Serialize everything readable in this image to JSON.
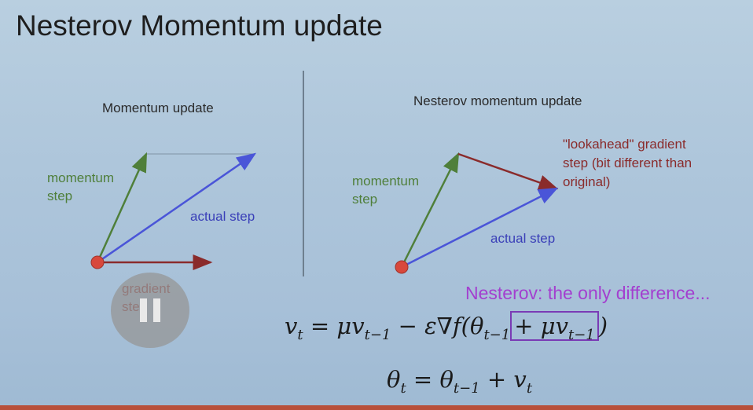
{
  "slide": {
    "title": "Nesterov Momentum update",
    "left_diagram": {
      "heading": "Momentum update",
      "momentum_label_line1": "momentum",
      "momentum_label_line2": "step",
      "actual_label": "actual step",
      "gradient_label_line1": "gradient",
      "gradient_label_line2": "step"
    },
    "right_diagram": {
      "heading": "Nesterov momentum update",
      "lookahead_line1": "\"lookahead\" gradient",
      "lookahead_line2": "step (bit different than",
      "lookahead_line3": "original)",
      "momentum_label_line1": "momentum",
      "momentum_label_line2": "step",
      "actual_label": "actual step"
    },
    "note": "Nesterov: the only difference...",
    "equations": {
      "v_lhs": "v",
      "v_lhs_sub": "t",
      "v_eq": " = μv",
      "v_sub1": "t−1",
      "v_mid": " − ε∇f(θ",
      "v_sub2": "t−1",
      "v_box": "+ μv",
      "v_box_sub": "t−1",
      "v_close": ")",
      "theta_lhs": "θ",
      "theta_lhs_sub": "t",
      "theta_eq": " = θ",
      "theta_sub1": "t−1",
      "theta_plus": " + v",
      "theta_sub2": "t"
    }
  },
  "player": {
    "pause_icon": "pause-icon"
  },
  "colors": {
    "momentum": "#4f7f3a",
    "actual": "#4a55d8",
    "gradient": "#8a2b2b",
    "point": "#d8483c",
    "highlight": "#a33fcf"
  }
}
